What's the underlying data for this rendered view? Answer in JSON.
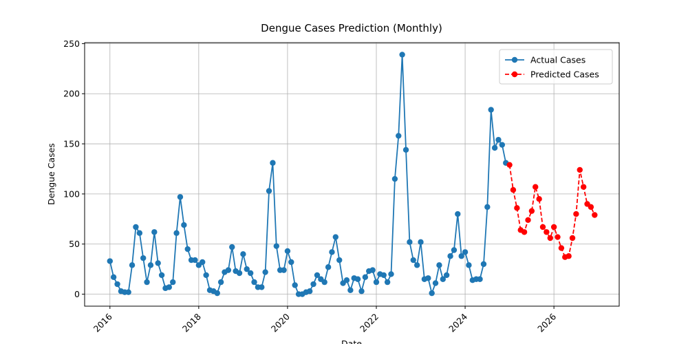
{
  "chart_data": {
    "type": "line",
    "title": "Dengue Cases Prediction (Monthly)",
    "x_label": "Date",
    "y_label": "Dengue Cases",
    "xlim": [
      2015.43,
      2027.47
    ],
    "ylim": [
      -11.95,
      250.95
    ],
    "xticks": [
      2016,
      2018,
      2020,
      2022,
      2024,
      2026
    ],
    "yticks": [
      0,
      50,
      100,
      150,
      200,
      250
    ],
    "grid": true,
    "legend": "upper right",
    "series": [
      {
        "name": "Actual Cases",
        "color": "#1f77b4",
        "line_style": "solid",
        "marker": "o",
        "x": [
          2016,
          2016.083,
          2016.167,
          2016.25,
          2016.333,
          2016.417,
          2016.5,
          2016.583,
          2016.667,
          2016.75,
          2016.833,
          2016.917,
          2017,
          2017.083,
          2017.167,
          2017.25,
          2017.333,
          2017.417,
          2017.5,
          2017.583,
          2017.667,
          2017.75,
          2017.833,
          2017.917,
          2018,
          2018.083,
          2018.167,
          2018.25,
          2018.333,
          2018.417,
          2018.5,
          2018.583,
          2018.667,
          2018.75,
          2018.833,
          2018.917,
          2019,
          2019.083,
          2019.167,
          2019.25,
          2019.333,
          2019.417,
          2019.5,
          2019.583,
          2019.667,
          2019.75,
          2019.833,
          2019.917,
          2020,
          2020.083,
          2020.167,
          2020.25,
          2020.333,
          2020.417,
          2020.5,
          2020.583,
          2020.667,
          2020.75,
          2020.833,
          2020.917,
          2021,
          2021.083,
          2021.167,
          2021.25,
          2021.333,
          2021.417,
          2021.5,
          2021.583,
          2021.667,
          2021.75,
          2021.833,
          2021.917,
          2022,
          2022.083,
          2022.167,
          2022.25,
          2022.333,
          2022.417,
          2022.5,
          2022.583,
          2022.667,
          2022.75,
          2022.833,
          2022.917,
          2023,
          2023.083,
          2023.167,
          2023.25,
          2023.333,
          2023.417,
          2023.5,
          2023.583,
          2023.667,
          2023.75,
          2023.833,
          2023.917,
          2024,
          2024.083,
          2024.167,
          2024.25,
          2024.333,
          2024.417,
          2024.5,
          2024.583,
          2024.667,
          2024.75,
          2024.833,
          2024.917
        ],
        "values": [
          33,
          17,
          10,
          3,
          2,
          2,
          29,
          67,
          61,
          36,
          12,
          29,
          62,
          31,
          19,
          6,
          7,
          12,
          61,
          97,
          69,
          45,
          34,
          34,
          29,
          32,
          19,
          4,
          3,
          1,
          12,
          22,
          24,
          47,
          23,
          21,
          40,
          25,
          21,
          12,
          7,
          7,
          22,
          103,
          131,
          48,
          24,
          24,
          43,
          32,
          9,
          0,
          0,
          2,
          3,
          10,
          19,
          15,
          12,
          27,
          42,
          57,
          34,
          11,
          14,
          4,
          16,
          15,
          3,
          17,
          23,
          24,
          12,
          20,
          19,
          12,
          20,
          115,
          158,
          239,
          144,
          52,
          34,
          29,
          52,
          15,
          16,
          1,
          11,
          29,
          15,
          19,
          38,
          44,
          80,
          38,
          42,
          29,
          14,
          15,
          15,
          30,
          87,
          184,
          146,
          154,
          149,
          131
        ]
      },
      {
        "name": "Predicted Cases",
        "color": "#ff0000",
        "line_style": "dashed",
        "marker": "o",
        "x": [
          2025,
          2025.083,
          2025.167,
          2025.25,
          2025.333,
          2025.417,
          2025.5,
          2025.583,
          2025.667,
          2025.75,
          2025.833,
          2025.917,
          2026,
          2026.083,
          2026.167,
          2026.25,
          2026.333,
          2026.417,
          2026.5,
          2026.583,
          2026.667,
          2026.75,
          2026.833,
          2026.917
        ],
        "values": [
          129,
          104,
          86,
          64,
          62,
          74,
          83,
          107,
          95,
          67,
          62,
          56,
          67,
          57,
          46,
          37,
          38,
          56,
          80,
          124,
          107,
          90,
          87,
          79
        ]
      }
    ]
  }
}
